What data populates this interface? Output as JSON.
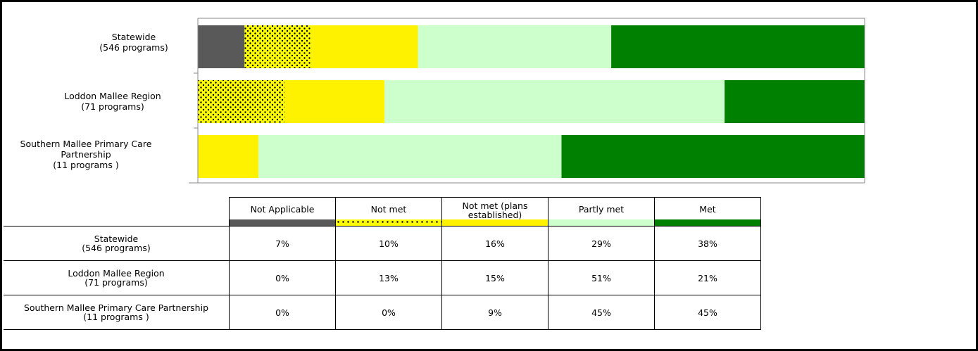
{
  "chart_data": {
    "type": "bar",
    "orientation": "horizontal",
    "stacked": "100%",
    "categories": [
      [
        "Statewide",
        "(546 programs)"
      ],
      [
        "Loddon Mallee Region",
        "(71 programs)"
      ],
      [
        "Southern Mallee Primary Care",
        "Partnership",
        "(11 programs )"
      ]
    ],
    "series": [
      {
        "name": "Not Applicable",
        "color": "#595959",
        "pattern": "solid",
        "values": [
          7,
          0,
          0
        ]
      },
      {
        "name": "Not met",
        "color": "#FFFF00",
        "pattern": "dots",
        "values": [
          10,
          13,
          0
        ]
      },
      {
        "name": "Not met (plans established)",
        "color": "#FFF200",
        "pattern": "solid",
        "values": [
          16,
          15,
          9
        ]
      },
      {
        "name": "Partly met",
        "color": "#CCFFCC",
        "pattern": "solid",
        "values": [
          29,
          51,
          45
        ]
      },
      {
        "name": "Met",
        "color": "#008000",
        "pattern": "solid",
        "values": [
          38,
          21,
          45
        ]
      }
    ],
    "xlim": [
      0,
      100
    ],
    "grid": false,
    "legend": "data-table below chart"
  },
  "table": {
    "headers": [
      "Not Applicable",
      "Not met",
      "Not met (plans established)",
      "Partly met",
      "Met"
    ],
    "rows": [
      {
        "label1": "Statewide",
        "label2": "(546 programs)",
        "cells": [
          "7%",
          "10%",
          "16%",
          "29%",
          "38%"
        ]
      },
      {
        "label1": "Loddon Mallee Region",
        "label2": "(71 programs)",
        "cells": [
          "0%",
          "13%",
          "15%",
          "51%",
          "21%"
        ]
      },
      {
        "label1": "Southern Mallee Primary Care Partnership",
        "label2": "(11 programs )",
        "cells": [
          "0%",
          "0%",
          "9%",
          "45%",
          "45%"
        ]
      }
    ]
  }
}
